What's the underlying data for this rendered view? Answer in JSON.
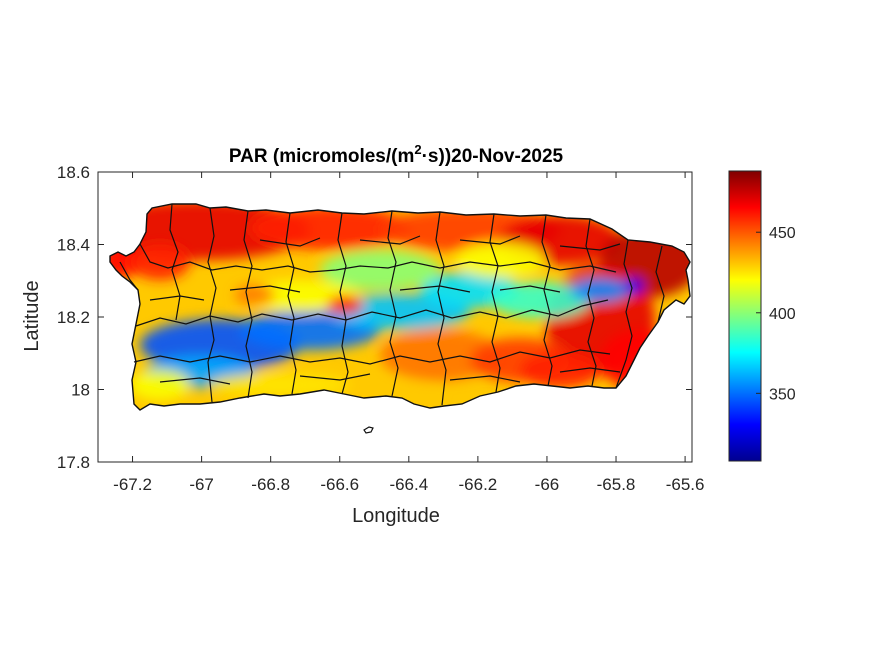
{
  "chart_data": {
    "type": "heatmap",
    "title_main": "PAR (micromoles/(m",
    "title_sup": "2",
    "title_rest": "·s))20-Nov-2025",
    "xlabel": "Longitude",
    "ylabel": "Latitude",
    "xlim": [
      -67.3,
      -65.58
    ],
    "ylim": [
      17.8,
      18.6
    ],
    "xticks": [
      -67.2,
      -67,
      -66.8,
      -66.6,
      -66.4,
      -66.2,
      -66,
      -65.8,
      -65.6
    ],
    "xtick_labels": [
      "-67.2",
      "-67",
      "-66.8",
      "-66.6",
      "-66.4",
      "-66.2",
      "-66",
      "-65.8",
      "-65.6"
    ],
    "yticks": [
      17.8,
      18,
      18.2,
      18.4,
      18.6
    ],
    "ytick_labels": [
      "17.8",
      "18",
      "18.2",
      "18.4",
      "18.6"
    ],
    "colormap": "jet",
    "clim": [
      308,
      488
    ],
    "colorbar_ticks": [
      350,
      400,
      450
    ],
    "colorbar_tick_labels": [
      "350",
      "400",
      "450"
    ],
    "region": "Puerto Rico municipalities",
    "field_pattern": [
      {
        "area": "north coast",
        "level": "high",
        "approx_value": 465
      },
      {
        "area": "east / northeast",
        "level": "high",
        "approx_value": 470
      },
      {
        "area": "southwest-central band",
        "level": "low",
        "approx_value": 350
      },
      {
        "area": "central interior",
        "level": "medium",
        "approx_value": 395
      },
      {
        "area": "south coast",
        "level": "medium-high",
        "approx_value": 425
      }
    ]
  }
}
